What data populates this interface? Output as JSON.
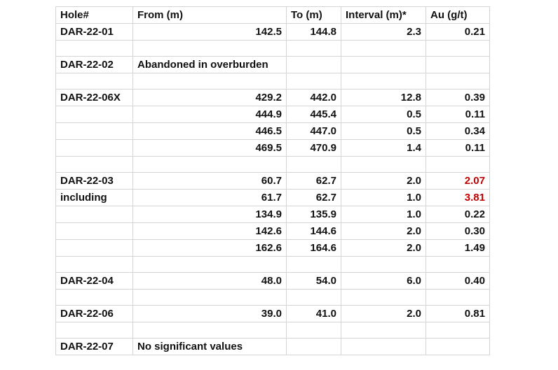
{
  "columns": [
    "Hole#",
    "From (m)",
    "To (m)",
    "Interval (m)*",
    "Au (g/t)"
  ],
  "rows": [
    {
      "hole": "DAR-22-01",
      "from": "142.5",
      "to": "144.8",
      "interval": "2.3",
      "au": "0.21"
    },
    {
      "hole": "",
      "from": "",
      "to": "",
      "interval": "",
      "au": ""
    },
    {
      "hole": "DAR-22-02",
      "note": "Abandoned in overburden"
    },
    {
      "hole": "",
      "from": "",
      "to": "",
      "interval": "",
      "au": ""
    },
    {
      "hole": "DAR-22-06X",
      "from": "429.2",
      "to": "442.0",
      "interval": "12.8",
      "au": "0.39"
    },
    {
      "hole": "",
      "from": "444.9",
      "to": "445.4",
      "interval": "0.5",
      "au": "0.11"
    },
    {
      "hole": "",
      "from": "446.5",
      "to": "447.0",
      "interval": "0.5",
      "au": "0.34"
    },
    {
      "hole": "",
      "from": "469.5",
      "to": "470.9",
      "interval": "1.4",
      "au": "0.11"
    },
    {
      "hole": "",
      "from": "",
      "to": "",
      "interval": "",
      "au": ""
    },
    {
      "hole": "DAR-22-03",
      "from": "60.7",
      "to": "62.7",
      "interval": "2.0",
      "au": "2.07",
      "highlight": true
    },
    {
      "hole": "including",
      "from": "61.7",
      "to": "62.7",
      "interval": "1.0",
      "au": "3.81",
      "highlight": true
    },
    {
      "hole": "",
      "from": "134.9",
      "to": "135.9",
      "interval": "1.0",
      "au": "0.22"
    },
    {
      "hole": "",
      "from": "142.6",
      "to": "144.6",
      "interval": "2.0",
      "au": "0.30"
    },
    {
      "hole": "",
      "from": "162.6",
      "to": "164.6",
      "interval": "2.0",
      "au": "1.49"
    },
    {
      "hole": "",
      "from": "",
      "to": "",
      "interval": "",
      "au": ""
    },
    {
      "hole": "DAR-22-04",
      "from": "48.0",
      "to": "54.0",
      "interval": "6.0",
      "au": "0.40"
    },
    {
      "hole": "",
      "from": "",
      "to": "",
      "interval": "",
      "au": ""
    },
    {
      "hole": "DAR-22-06",
      "from": "39.0",
      "to": "41.0",
      "interval": "2.0",
      "au": "0.81"
    },
    {
      "hole": "",
      "from": "",
      "to": "",
      "interval": "",
      "au": ""
    },
    {
      "hole": "DAR-22-07",
      "note": "No significant values"
    }
  ],
  "highlight_color": "#c00000"
}
